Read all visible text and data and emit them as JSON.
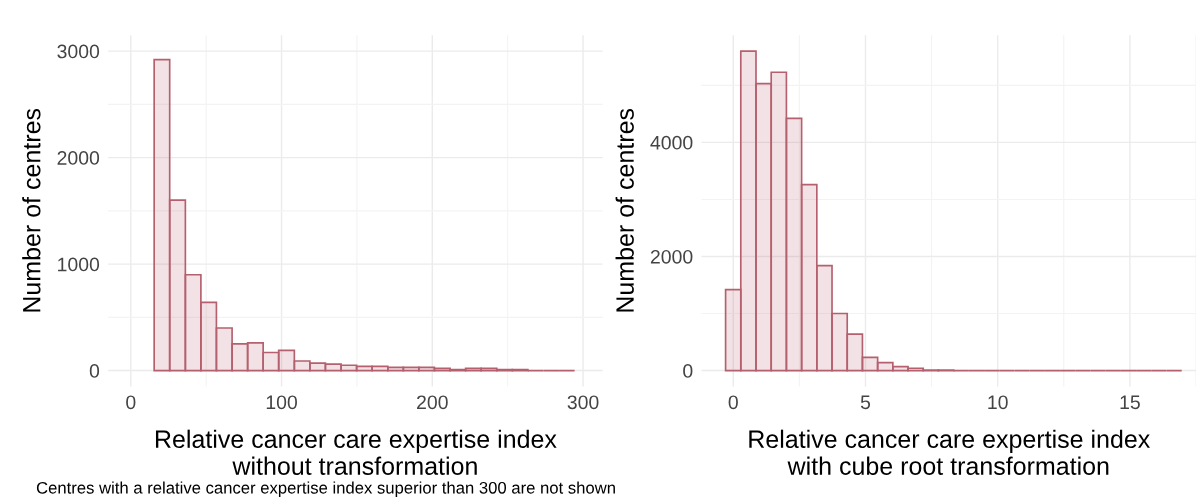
{
  "chart_data": [
    {
      "type": "histogram",
      "xlabel": "Relative cancer care expertise index\nwithout transformation",
      "ylabel": "Number of centres",
      "color": "#b5606e",
      "bins": [
        15.5,
        25.8,
        36.2,
        46.5,
        56.8,
        67.2,
        77.5,
        87.8,
        98.1,
        108.5,
        118.8,
        129.1,
        139.5,
        149.8,
        160.1,
        170.5,
        180.8,
        191.1,
        201.4,
        211.8,
        222.1,
        232.4,
        242.8,
        253.1,
        263.4,
        273.8,
        284.1,
        294.4
      ],
      "values": [
        2920,
        1600,
        900,
        640,
        400,
        250,
        260,
        170,
        190,
        90,
        70,
        60,
        50,
        40,
        40,
        30,
        30,
        30,
        20,
        10,
        20,
        20,
        10,
        10,
        0,
        0,
        0
      ],
      "xlim": [
        -15,
        313
      ],
      "xticks": [
        0,
        100,
        200,
        300
      ],
      "ylim": [
        -150,
        3150
      ],
      "yticks": [
        0,
        1000,
        2000,
        3000
      ],
      "grid": true,
      "annotations": [
        "Centres with a relative cancer expertise index superior than 300 are not shown"
      ]
    },
    {
      "type": "histogram",
      "xlabel": "Relative cancer care expertise index\nwith cube root transformation",
      "ylabel": "Number of centres",
      "color": "#b5606e",
      "bins": [
        -0.29,
        0.285,
        0.86,
        1.435,
        2.01,
        2.585,
        3.16,
        3.735,
        4.31,
        4.885,
        5.46,
        6.035,
        6.61,
        7.185,
        7.76,
        8.335,
        8.91,
        9.485,
        10.06,
        10.635,
        11.21,
        11.785,
        12.36,
        12.935,
        13.51,
        14.085,
        14.66,
        15.235,
        15.81,
        16.385,
        16.96
      ],
      "values": [
        1420,
        5600,
        5030,
        5230,
        4420,
        3260,
        1840,
        1000,
        640,
        230,
        140,
        70,
        40,
        10,
        10,
        0,
        0,
        0,
        0,
        0,
        0,
        0,
        0,
        0,
        0,
        0,
        0,
        0,
        0,
        0
      ],
      "xlim": [
        -1.2,
        17.5
      ],
      "xticks": [
        0,
        5,
        10,
        15
      ],
      "ylim": [
        -280,
        5880
      ],
      "yticks": [
        0,
        2000,
        4000
      ],
      "grid": true
    }
  ]
}
